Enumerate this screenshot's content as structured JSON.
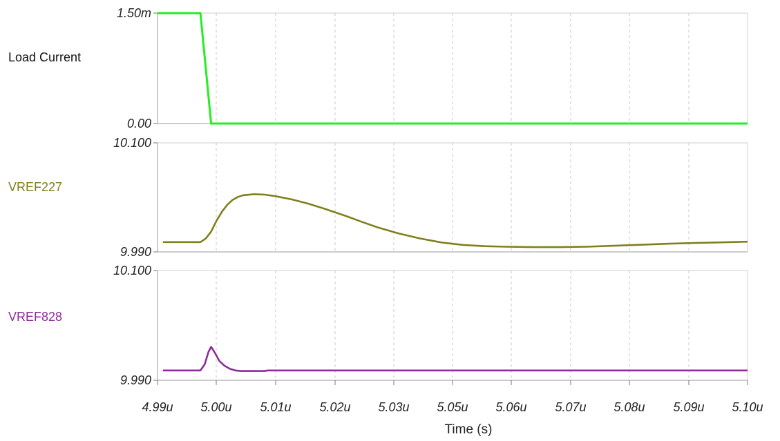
{
  "chart_data": {
    "type": "line",
    "xlabel": "Time (s)",
    "x_ticks": [
      "4.99u",
      "5.00u",
      "5.01u",
      "5.02u",
      "5.03u",
      "5.05u",
      "5.06u",
      "5.07u",
      "5.08u",
      "5.09u",
      "5.10u"
    ],
    "xlim": [
      4.99,
      5.1
    ],
    "x_unit": "us",
    "panels": [
      {
        "name": "Load Current",
        "color": "#22ee22",
        "ylim": [
          0,
          1.5
        ],
        "y_tick_labels": [
          "1.50m",
          "0.00"
        ],
        "points": [
          [
            4.99,
            1.5
          ],
          [
            4.998,
            1.5
          ],
          [
            5.0,
            0.0
          ],
          [
            5.1,
            0.0
          ]
        ]
      },
      {
        "name": "VREF227",
        "color": "#7f7f1c",
        "ylim": [
          9.99,
          10.1
        ],
        "y_tick_labels": [
          "10.100",
          "9.990"
        ],
        "points": [
          [
            4.991,
            9.9999
          ],
          [
            4.998,
            9.9999
          ],
          [
            4.999,
            10.0035
          ],
          [
            5.0,
            10.0105
          ],
          [
            5.001,
            10.0215
          ],
          [
            5.002,
            10.0305
          ],
          [
            5.003,
            10.0375
          ],
          [
            5.004,
            10.0425
          ],
          [
            5.005,
            10.0455
          ],
          [
            5.006,
            10.0472
          ],
          [
            5.008,
            10.0482
          ],
          [
            5.01,
            10.0478
          ],
          [
            5.012,
            10.0462
          ],
          [
            5.015,
            10.043
          ],
          [
            5.018,
            10.0388
          ],
          [
            5.021,
            10.0338
          ],
          [
            5.025,
            10.0265
          ],
          [
            5.028,
            10.0205
          ],
          [
            5.031,
            10.0148
          ],
          [
            5.035,
            10.0085
          ],
          [
            5.039,
            10.0035
          ],
          [
            5.043,
            9.9995
          ],
          [
            5.047,
            9.997
          ],
          [
            5.051,
            9.9958
          ],
          [
            5.055,
            9.9952
          ],
          [
            5.06,
            9.9948
          ],
          [
            5.065,
            9.9948
          ],
          [
            5.07,
            9.9952
          ],
          [
            5.075,
            9.9962
          ],
          [
            5.08,
            9.9972
          ],
          [
            5.085,
            9.9982
          ],
          [
            5.09,
            9.999
          ],
          [
            5.095,
            9.9996
          ],
          [
            5.1,
            10.0003
          ]
        ]
      },
      {
        "name": "VREF828",
        "color": "#8b2d98",
        "ylim": [
          9.99,
          10.1
        ],
        "y_tick_labels": [
          "10.100",
          "9.990"
        ],
        "points": [
          [
            4.991,
            9.9998
          ],
          [
            4.998,
            9.9998
          ],
          [
            4.9988,
            10.006
          ],
          [
            4.9995,
            10.0185
          ],
          [
            5.0,
            10.0235
          ],
          [
            5.0007,
            10.0175
          ],
          [
            5.0015,
            10.0095
          ],
          [
            5.0025,
            10.0045
          ],
          [
            5.0035,
            10.0015
          ],
          [
            5.0045,
            9.9998
          ],
          [
            5.0055,
            9.9993
          ],
          [
            5.01,
            9.9993
          ],
          [
            5.0105,
            9.9998
          ],
          [
            5.1,
            9.9998
          ]
        ]
      }
    ],
    "grid": "vertical-dashed"
  }
}
